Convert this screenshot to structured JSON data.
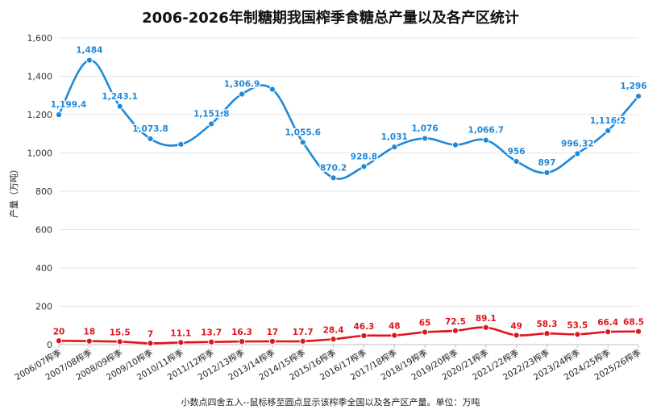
{
  "chart_data": {
    "type": "line",
    "title": "2006-2026年制糖期我国榨季食糖总产量以及各产区统计",
    "ylabel": "产量（万吨）",
    "xlabel": "",
    "note": "小数点四舍五入--鼠标移至圆点显示该榨季全国以及各产区产量。单位：万吨",
    "ylim": [
      0,
      1600
    ],
    "yticks": [
      "0",
      "200",
      "400",
      "600",
      "800",
      "1,000",
      "1,200",
      "1,400",
      "1,600"
    ],
    "ytick_values": [
      0,
      200,
      400,
      600,
      800,
      1000,
      1200,
      1400,
      1600
    ],
    "grid": true,
    "categories": [
      "2006/07榨季",
      "2007/08榨季",
      "2008/09榨季",
      "2009/10榨季",
      "2010/11榨季",
      "2011/12榨季",
      "2012/13榨季",
      "2013/14榨季",
      "2014/15榨季",
      "2015/16榨季",
      "2016/17榨季",
      "2017/18榨季",
      "2018/19榨季",
      "2019/20榨季",
      "2020/21榨季",
      "2021/22榨季",
      "2022/23榨季",
      "2023/24榨季",
      "2024/25榨季",
      "2025/26榨季"
    ],
    "series": [
      {
        "color": "#1e88d9",
        "values": [
          1199.4,
          1484,
          1243.1,
          1073.8,
          1045,
          1151.8,
          1306.9,
          1332,
          1055.6,
          870.2,
          928.8,
          1031,
          1076,
          1042,
          1066.7,
          956,
          897,
          996.32,
          1116.2,
          1296
        ],
        "labels": [
          "1,199.4",
          "1,484",
          "1,243.1",
          "1,073.8",
          "",
          "1,151.8",
          "1,306.9",
          "",
          "1,055.6",
          "870.2",
          "928.8",
          "1,031",
          "1,076",
          "",
          "1,066.7",
          "956",
          "897",
          "996.32",
          "1,116.2",
          "1,296"
        ]
      },
      {
        "color": "#e0141e",
        "values": [
          20,
          18,
          15.5,
          7,
          11.1,
          13.7,
          16.3,
          17,
          17.7,
          28.4,
          46.3,
          48,
          65,
          72.5,
          89.1,
          49,
          58.3,
          53.5,
          66.4,
          68.5
        ],
        "labels": [
          "20",
          "18",
          "15.5",
          "7",
          "11.1",
          "13.7",
          "16.3",
          "17",
          "17.7",
          "28.4",
          "46.3",
          "48",
          "65",
          "72.5",
          "89.1",
          "49",
          "58.3",
          "53.5",
          "66.4",
          "68.5"
        ]
      }
    ]
  }
}
